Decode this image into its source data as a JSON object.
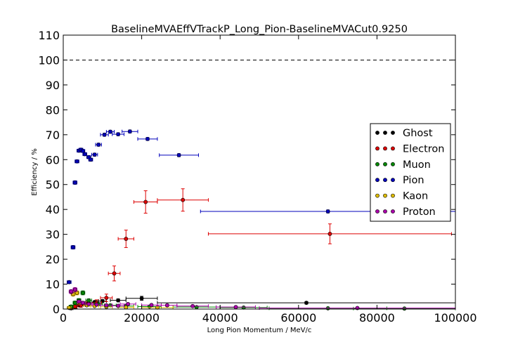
{
  "chart_data": {
    "type": "scatter",
    "title": "BaselineMVAEffVTrackP_Long_Pion-BaselineMVACut0.9250",
    "xlabel": "Long Pion Momentum / MeV/c",
    "ylabel": "Efficiency / %",
    "xlim": [
      0,
      100000
    ],
    "ylim": [
      0,
      110
    ],
    "xticks": [
      "0",
      "20000",
      "40000",
      "60000",
      "80000",
      "100000"
    ],
    "yticks": [
      "0",
      "10",
      "20",
      "30",
      "40",
      "50",
      "60",
      "70",
      "80",
      "90",
      "100",
      "110"
    ],
    "reference_line": 100,
    "legend_position": "center-right",
    "series": [
      {
        "name": "Ghost",
        "color": "#000000",
        "points": [
          {
            "x": 2000,
            "y": 0.3,
            "xerr": 500,
            "yerr": 0.2
          },
          {
            "x": 3000,
            "y": 0.8,
            "xerr": 500,
            "yerr": 0.3
          },
          {
            "x": 4000,
            "y": 1.5,
            "xerr": 500,
            "yerr": 0.4
          },
          {
            "x": 5000,
            "y": 2.0,
            "xerr": 500,
            "yerr": 0.4
          },
          {
            "x": 6500,
            "y": 2.5,
            "xerr": 750,
            "yerr": 0.5
          },
          {
            "x": 8000,
            "y": 2.8,
            "xerr": 750,
            "yerr": 0.5
          },
          {
            "x": 10000,
            "y": 3.2,
            "xerr": 1000,
            "yerr": 0.6
          },
          {
            "x": 14000,
            "y": 3.5,
            "xerr": 2000,
            "yerr": 0.6
          },
          {
            "x": 20000,
            "y": 4.3,
            "xerr": 4000,
            "yerr": 0.8
          },
          {
            "x": 62000,
            "y": 2.5,
            "xerr": 38000,
            "yerr": 0.5
          }
        ]
      },
      {
        "name": "Electron",
        "color": "#dd0000",
        "points": [
          {
            "x": 2000,
            "y": 0.5,
            "xerr": 500,
            "yerr": 0.3
          },
          {
            "x": 3000,
            "y": 1.0,
            "xerr": 500,
            "yerr": 0.5
          },
          {
            "x": 4500,
            "y": 1.5,
            "xerr": 750,
            "yerr": 0.8
          },
          {
            "x": 6000,
            "y": 2.0,
            "xerr": 750,
            "yerr": 1.0
          },
          {
            "x": 8500,
            "y": 2.5,
            "xerr": 1250,
            "yerr": 1.2
          },
          {
            "x": 11000,
            "y": 4.5,
            "xerr": 1500,
            "yerr": 1.5
          },
          {
            "x": 13000,
            "y": 14.3,
            "xerr": 1500,
            "yerr": 3.0
          },
          {
            "x": 16000,
            "y": 28.2,
            "xerr": 2000,
            "yerr": 3.5
          },
          {
            "x": 21000,
            "y": 43.0,
            "xerr": 3000,
            "yerr": 4.5
          },
          {
            "x": 30500,
            "y": 43.8,
            "xerr": 6500,
            "yerr": 4.5
          },
          {
            "x": 68000,
            "y": 30.2,
            "xerr": 31000,
            "yerr": 4.0
          }
        ]
      },
      {
        "name": "Muon",
        "color": "#008800",
        "points": [
          {
            "x": 2000,
            "y": 1.0,
            "xerr": 500,
            "yerr": 0.5
          },
          {
            "x": 3000,
            "y": 2.5,
            "xerr": 500,
            "yerr": 0.7
          },
          {
            "x": 4000,
            "y": 3.5,
            "xerr": 500,
            "yerr": 0.7
          },
          {
            "x": 5000,
            "y": 6.5,
            "xerr": 500,
            "yerr": 0.8
          },
          {
            "x": 6500,
            "y": 3.5,
            "xerr": 750,
            "yerr": 0.6
          },
          {
            "x": 9000,
            "y": 2.0,
            "xerr": 1000,
            "yerr": 0.5
          },
          {
            "x": 12000,
            "y": 1.5,
            "xerr": 1500,
            "yerr": 0.4
          },
          {
            "x": 16000,
            "y": 1.2,
            "xerr": 2000,
            "yerr": 0.4
          },
          {
            "x": 22000,
            "y": 1.0,
            "xerr": 3000,
            "yerr": 0.3
          },
          {
            "x": 34000,
            "y": 0.8,
            "xerr": 6000,
            "yerr": 0.3
          },
          {
            "x": 46000,
            "y": 0.6,
            "xerr": 6000,
            "yerr": 0.3
          },
          {
            "x": 67500,
            "y": 0.3,
            "xerr": 15000,
            "yerr": 0.2
          },
          {
            "x": 87000,
            "y": 0.2,
            "xerr": 13000,
            "yerr": 0.1
          }
        ]
      },
      {
        "name": "Pion",
        "color": "#0000bb",
        "points": [
          {
            "x": 1500,
            "y": 10.8,
            "xerr": 500,
            "yerr": 0.5
          },
          {
            "x": 2500,
            "y": 24.8,
            "xerr": 500,
            "yerr": 0.7
          },
          {
            "x": 3000,
            "y": 50.8,
            "xerr": 500,
            "yerr": 0.7
          },
          {
            "x": 3500,
            "y": 59.3,
            "xerr": 500,
            "yerr": 0.6
          },
          {
            "x": 4000,
            "y": 63.6,
            "xerr": 500,
            "yerr": 0.6
          },
          {
            "x": 4500,
            "y": 64.0,
            "xerr": 500,
            "yerr": 0.6
          },
          {
            "x": 5000,
            "y": 63.5,
            "xerr": 500,
            "yerr": 0.6
          },
          {
            "x": 5500,
            "y": 62.2,
            "xerr": 500,
            "yerr": 0.6
          },
          {
            "x": 6500,
            "y": 61.0,
            "xerr": 500,
            "yerr": 0.6
          },
          {
            "x": 7000,
            "y": 60.0,
            "xerr": 500,
            "yerr": 0.6
          },
          {
            "x": 8000,
            "y": 62.0,
            "xerr": 750,
            "yerr": 0.6
          },
          {
            "x": 9000,
            "y": 66.0,
            "xerr": 750,
            "yerr": 0.6
          },
          {
            "x": 10500,
            "y": 70.0,
            "xerr": 1000,
            "yerr": 0.6
          },
          {
            "x": 12000,
            "y": 71.2,
            "xerr": 1000,
            "yerr": 0.6
          },
          {
            "x": 14000,
            "y": 70.2,
            "xerr": 1500,
            "yerr": 0.6
          },
          {
            "x": 17000,
            "y": 71.3,
            "xerr": 2000,
            "yerr": 0.6
          },
          {
            "x": 21500,
            "y": 68.3,
            "xerr": 2500,
            "yerr": 0.6
          },
          {
            "x": 29500,
            "y": 61.8,
            "xerr": 5000,
            "yerr": 0.6
          },
          {
            "x": 67500,
            "y": 39.2,
            "xerr": 32500,
            "yerr": 0.6
          }
        ]
      },
      {
        "name": "Kaon",
        "color": "#ddbb00",
        "points": [
          {
            "x": 1500,
            "y": 0.5,
            "xerr": 500,
            "yerr": 0.3
          },
          {
            "x": 2500,
            "y": 6.0,
            "xerr": 500,
            "yerr": 0.8
          },
          {
            "x": 3500,
            "y": 6.5,
            "xerr": 500,
            "yerr": 0.8
          },
          {
            "x": 4500,
            "y": 2.5,
            "xerr": 500,
            "yerr": 0.5
          },
          {
            "x": 6000,
            "y": 1.5,
            "xerr": 750,
            "yerr": 0.4
          },
          {
            "x": 8000,
            "y": 1.2,
            "xerr": 1000,
            "yerr": 0.4
          },
          {
            "x": 11000,
            "y": 0.9,
            "xerr": 1500,
            "yerr": 0.3
          },
          {
            "x": 16000,
            "y": 0.7,
            "xerr": 2000,
            "yerr": 0.3
          },
          {
            "x": 24000,
            "y": 0.6,
            "xerr": 4000,
            "yerr": 0.3
          }
        ]
      },
      {
        "name": "Proton",
        "color": "#aa00aa",
        "points": [
          {
            "x": 2000,
            "y": 7.0,
            "xerr": 500,
            "yerr": 0.8
          },
          {
            "x": 3000,
            "y": 7.8,
            "xerr": 500,
            "yerr": 0.8
          },
          {
            "x": 4000,
            "y": 3.0,
            "xerr": 500,
            "yerr": 0.5
          },
          {
            "x": 5000,
            "y": 2.5,
            "xerr": 500,
            "yerr": 0.5
          },
          {
            "x": 6500,
            "y": 2.0,
            "xerr": 750,
            "yerr": 0.4
          },
          {
            "x": 8500,
            "y": 1.8,
            "xerr": 1000,
            "yerr": 0.4
          },
          {
            "x": 11000,
            "y": 1.5,
            "xerr": 1500,
            "yerr": 0.4
          },
          {
            "x": 14000,
            "y": 1.3,
            "xerr": 1500,
            "yerr": 0.4
          },
          {
            "x": 16500,
            "y": 2.0,
            "xerr": 2000,
            "yerr": 0.5
          },
          {
            "x": 22500,
            "y": 1.6,
            "xerr": 2500,
            "yerr": 0.4
          },
          {
            "x": 26500,
            "y": 1.5,
            "xerr": 2500,
            "yerr": 0.4
          },
          {
            "x": 33000,
            "y": 1.2,
            "xerr": 4000,
            "yerr": 0.4
          },
          {
            "x": 44000,
            "y": 0.8,
            "xerr": 5000,
            "yerr": 0.3
          },
          {
            "x": 75000,
            "y": 0.4,
            "xerr": 25000,
            "yerr": 0.2
          }
        ]
      }
    ]
  }
}
